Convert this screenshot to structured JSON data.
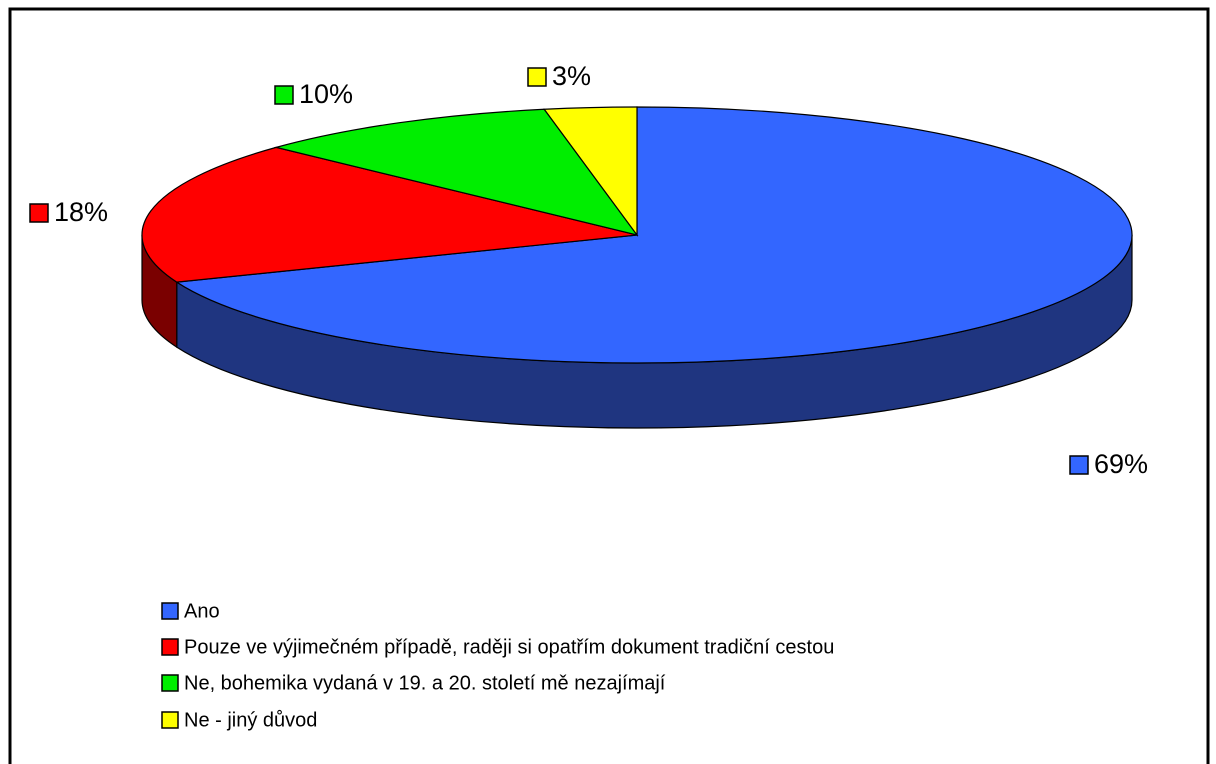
{
  "chart_data": {
    "type": "pie",
    "categories": [
      "Ano",
      "Pouze ve výjimečném případě, raději si opatřím dokument tradiční cestou",
      "Ne, bohemika vydaná v 19. a 20. století mě nezajímají",
      "Ne - jiný důvod"
    ],
    "values": [
      69,
      18,
      10,
      3
    ],
    "value_labels": [
      "69%",
      "18%",
      "10%",
      "3%"
    ],
    "colors": [
      "#3366ff",
      "#ff0000",
      "#00ee00",
      "#ffff00"
    ],
    "side_colors": [
      "#1f3580",
      "#7a0000",
      "#007700",
      "#808000"
    ]
  }
}
